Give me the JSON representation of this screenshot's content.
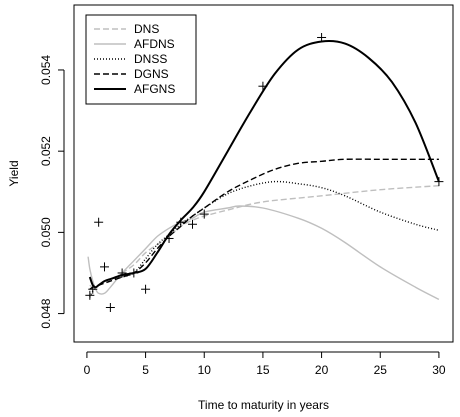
{
  "chart_data": {
    "type": "line",
    "title": "",
    "xlabel": "Time to maturity in years",
    "ylabel": "Yield",
    "xlim": [
      -1.1,
      31.2
    ],
    "ylim": [
      0.0473,
      0.0556
    ],
    "xticks": [
      0,
      5,
      10,
      15,
      20,
      25,
      30
    ],
    "yticks": [
      0.048,
      0.05,
      0.052,
      0.054
    ],
    "ytick_labels": [
      "0.048",
      "0.050",
      "0.052",
      "0.054"
    ],
    "grid": false,
    "legend_position": "top-left",
    "observed": {
      "x": [
        0.25,
        0.5,
        1,
        1.5,
        2,
        3,
        4,
        5,
        7,
        8,
        9,
        10,
        15,
        20,
        30
      ],
      "y": [
        0.04845,
        0.0486,
        0.05025,
        0.04915,
        0.04815,
        0.049,
        0.049,
        0.0486,
        0.04985,
        0.05025,
        0.0502,
        0.05045,
        0.0536,
        0.0548,
        0.05125
      ]
    },
    "series": [
      {
        "name": "DNS",
        "style": "dashed",
        "color": "#bfbfbf",
        "x": [
          0.25,
          0.5,
          1,
          1.5,
          2,
          3,
          4,
          5,
          6,
          7,
          8,
          9,
          10,
          12,
          15,
          20,
          25,
          30
        ],
        "y": [
          0.0487,
          0.04865,
          0.0487,
          0.04875,
          0.0488,
          0.049,
          0.0492,
          0.0495,
          0.0497,
          0.0499,
          0.05015,
          0.0503,
          0.0504,
          0.05055,
          0.05075,
          0.0509,
          0.05105,
          0.05115
        ]
      },
      {
        "name": "AFDNS",
        "style": "solid",
        "color": "#bfbfbf",
        "x": [
          0.1,
          0.25,
          0.5,
          0.75,
          1,
          1.5,
          2,
          3,
          4,
          5,
          6,
          7,
          8,
          9,
          10,
          12,
          13,
          15,
          18,
          20,
          22,
          25,
          28,
          30
        ],
        "y": [
          0.0494,
          0.0491,
          0.0488,
          0.0486,
          0.0485,
          0.0485,
          0.04865,
          0.049,
          0.0493,
          0.0496,
          0.0499,
          0.0501,
          0.05025,
          0.05035,
          0.0505,
          0.0506,
          0.05065,
          0.0506,
          0.05035,
          0.0501,
          0.04975,
          0.04915,
          0.04865,
          0.04835
        ]
      },
      {
        "name": "DNSS",
        "style": "dotted",
        "color": "#000000",
        "x": [
          0.25,
          0.5,
          1,
          1.5,
          2,
          3,
          4,
          5,
          6,
          7,
          8,
          9,
          10,
          12,
          14,
          16,
          18,
          20,
          22,
          25,
          28,
          30
        ],
        "y": [
          0.0484,
          0.04855,
          0.0487,
          0.0488,
          0.04885,
          0.0489,
          0.049,
          0.04935,
          0.0497,
          0.04995,
          0.0502,
          0.0504,
          0.0506,
          0.05095,
          0.05115,
          0.05125,
          0.0512,
          0.0511,
          0.0509,
          0.0505,
          0.0502,
          0.05005
        ]
      },
      {
        "name": "DGNS",
        "style": "dashed",
        "color": "#000000",
        "x": [
          0.25,
          0.5,
          1,
          1.5,
          2,
          3,
          4,
          5,
          6,
          7,
          8,
          9,
          10,
          12,
          14,
          16,
          18,
          20,
          22,
          25,
          28,
          30
        ],
        "y": [
          0.0486,
          0.04865,
          0.0487,
          0.04875,
          0.0488,
          0.0489,
          0.049,
          0.04925,
          0.0496,
          0.0499,
          0.05015,
          0.0504,
          0.0506,
          0.051,
          0.0513,
          0.05155,
          0.0517,
          0.05175,
          0.0518,
          0.0518,
          0.0518,
          0.0518
        ]
      },
      {
        "name": "AFGNS",
        "style": "solid",
        "color": "#000000",
        "x": [
          0.25,
          0.5,
          0.75,
          1,
          1.5,
          2,
          2.5,
          3,
          4,
          5,
          6,
          7,
          8,
          9,
          10,
          12,
          14,
          16,
          18,
          20,
          22,
          24,
          26,
          28,
          30
        ],
        "y": [
          0.0489,
          0.0487,
          0.04865,
          0.0487,
          0.0488,
          0.04885,
          0.0489,
          0.04895,
          0.049,
          0.0491,
          0.0495,
          0.04995,
          0.0503,
          0.0506,
          0.051,
          0.052,
          0.053,
          0.0539,
          0.0545,
          0.0547,
          0.05465,
          0.0543,
          0.0537,
          0.0527,
          0.05125
        ]
      }
    ]
  }
}
